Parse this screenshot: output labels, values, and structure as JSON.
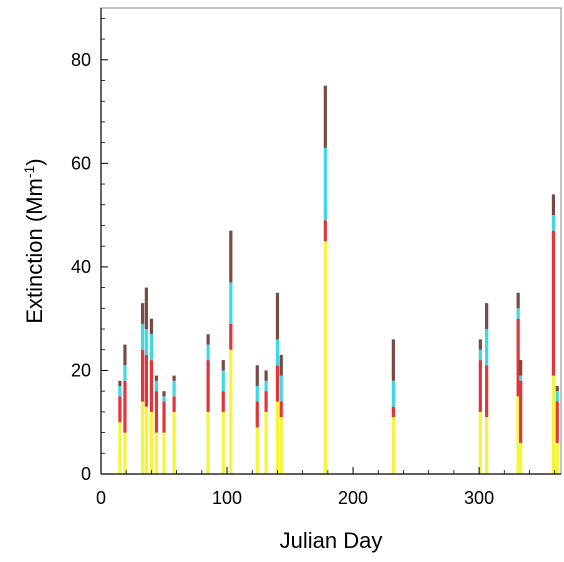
{
  "chart_data": {
    "type": "bar",
    "stacked": true,
    "title": "",
    "xlabel": "Julian Day",
    "ylabel_main": "Extinction (Mm",
    "ylabel_sup": "-1",
    "ylabel_close": ")",
    "xlim": [
      0,
      365
    ],
    "ylim": [
      0,
      90
    ],
    "xticks": [
      0,
      100,
      200,
      300
    ],
    "yticks": [
      0,
      20,
      40,
      60,
      80
    ],
    "grid": false,
    "legend": "none",
    "segment_order": [
      "yellow",
      "red",
      "cyan",
      "dark"
    ],
    "colors": {
      "yellow": "#f5f53a",
      "red": "#e0353a",
      "cyan": "#3fd6e6",
      "dark": "#7a4a42",
      "axis": "#000000",
      "frame": "#888888"
    },
    "bars": [
      {
        "day": 15,
        "segments": [
          10,
          5,
          2,
          1
        ]
      },
      {
        "day": 19,
        "segments": [
          8,
          10,
          3,
          4
        ]
      },
      {
        "day": 33,
        "segments": [
          14,
          10,
          5,
          4
        ]
      },
      {
        "day": 36,
        "segments": [
          13,
          10,
          5,
          8
        ]
      },
      {
        "day": 40,
        "segments": [
          12,
          10,
          5,
          3
        ]
      },
      {
        "day": 44,
        "segments": [
          8,
          8,
          2,
          1
        ]
      },
      {
        "day": 50,
        "segments": [
          8,
          6,
          1,
          1
        ]
      },
      {
        "day": 58,
        "segments": [
          12,
          3,
          3,
          1
        ]
      },
      {
        "day": 85,
        "segments": [
          12,
          10,
          3,
          2
        ]
      },
      {
        "day": 97,
        "segments": [
          12,
          4,
          4,
          2
        ]
      },
      {
        "day": 103,
        "segments": [
          24,
          5,
          8,
          10
        ]
      },
      {
        "day": 124,
        "segments": [
          9,
          5,
          3,
          4
        ]
      },
      {
        "day": 131,
        "segments": [
          12,
          4,
          2,
          2
        ]
      },
      {
        "day": 140,
        "segments": [
          14,
          7,
          5,
          9
        ]
      },
      {
        "day": 143,
        "segments": [
          11,
          3,
          5,
          4
        ]
      },
      {
        "day": 178,
        "segments": [
          45,
          4,
          14,
          12
        ]
      },
      {
        "day": 232,
        "segments": [
          11,
          2,
          5,
          8
        ]
      },
      {
        "day": 301,
        "segments": [
          12,
          10,
          2,
          2
        ]
      },
      {
        "day": 306,
        "segments": [
          11,
          10,
          7,
          5
        ]
      },
      {
        "day": 331,
        "segments": [
          15,
          15,
          2,
          3
        ]
      },
      {
        "day": 333,
        "segments": [
          6,
          12,
          1,
          3
        ]
      },
      {
        "day": 359,
        "segments": [
          19,
          28,
          3,
          4
        ]
      },
      {
        "day": 362,
        "segments": [
          6,
          8,
          2,
          1
        ]
      }
    ]
  }
}
